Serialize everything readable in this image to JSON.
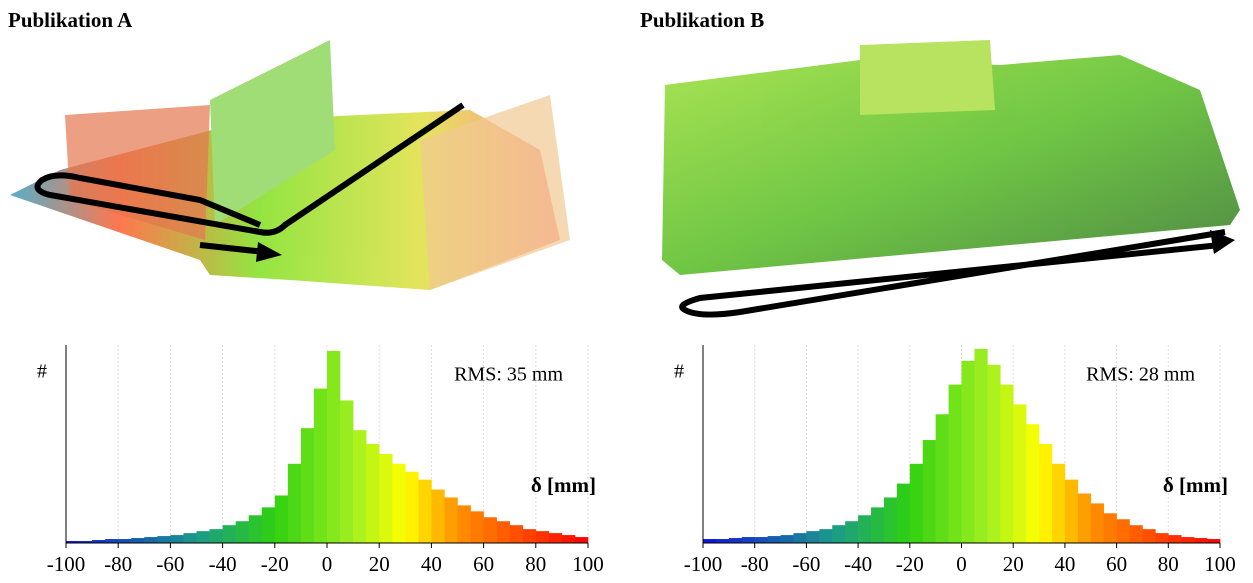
{
  "chart_data": [
    {
      "type": "histogram",
      "title": "Publikation A",
      "annotation": "RMS: 35 mm",
      "ylabel": "#",
      "xlabel": "δ [mm]",
      "bins": [
        -100,
        -95,
        -90,
        -85,
        -80,
        -75,
        -70,
        -65,
        -60,
        -55,
        -50,
        -45,
        -40,
        -35,
        -30,
        -25,
        -20,
        -15,
        -10,
        -5,
        0,
        5,
        10,
        15,
        20,
        25,
        30,
        35,
        40,
        45,
        50,
        55,
        60,
        65,
        70,
        75,
        80,
        85,
        90,
        95,
        100
      ],
      "counts": [
        1,
        1,
        1.5,
        2,
        2,
        2.5,
        3,
        3.5,
        4,
        5,
        6,
        7,
        9,
        11,
        14,
        18,
        24,
        40,
        58,
        78,
        97,
        72,
        57,
        50,
        45,
        40,
        36,
        32,
        27,
        23,
        19,
        16,
        13,
        11,
        9,
        7,
        6,
        5,
        4,
        3
      ],
      "xlim": [
        -100,
        100
      ],
      "xticks": [
        -100,
        -80,
        -60,
        -40,
        -20,
        0,
        20,
        40,
        60,
        80,
        100
      ],
      "ylim": [
        0,
        100
      ],
      "grid": true,
      "color_stops": [
        {
          "value": -100,
          "color": "#1010e0"
        },
        {
          "value": -50,
          "color": "#1a9a8a"
        },
        {
          "value": -20,
          "color": "#30d010"
        },
        {
          "value": 10,
          "color": "#a0f020"
        },
        {
          "value": 30,
          "color": "#ffff00"
        },
        {
          "value": 50,
          "color": "#ff9000"
        },
        {
          "value": 100,
          "color": "#ff0000"
        }
      ]
    },
    {
      "type": "histogram",
      "title": "Publikation B",
      "annotation": "RMS: 28 mm",
      "ylabel": "#",
      "xlabel": "δ [mm]",
      "bins": [
        -100,
        -95,
        -90,
        -85,
        -80,
        -75,
        -70,
        -65,
        -60,
        -55,
        -50,
        -45,
        -40,
        -35,
        -30,
        -25,
        -20,
        -15,
        -10,
        -5,
        0,
        5,
        10,
        15,
        20,
        25,
        30,
        35,
        40,
        45,
        50,
        55,
        60,
        65,
        70,
        75,
        80,
        85,
        90,
        95,
        100
      ],
      "counts": [
        2,
        2,
        2.5,
        3,
        3,
        3.5,
        4,
        5,
        6,
        7,
        9,
        11,
        14,
        18,
        23,
        30,
        40,
        52,
        65,
        80,
        92,
        98,
        90,
        80,
        70,
        60,
        50,
        40,
        32,
        25,
        20,
        15,
        12,
        9,
        7,
        5,
        4,
        3,
        2.5,
        2
      ],
      "xlim": [
        -100,
        100
      ],
      "xticks": [
        -100,
        -80,
        -60,
        -40,
        -20,
        0,
        20,
        40,
        60,
        80,
        100
      ],
      "ylim": [
        0,
        100
      ],
      "grid": true,
      "color_stops": [
        {
          "value": -100,
          "color": "#1010e0"
        },
        {
          "value": -50,
          "color": "#1a9a8a"
        },
        {
          "value": -20,
          "color": "#30d010"
        },
        {
          "value": 10,
          "color": "#a0f020"
        },
        {
          "value": 30,
          "color": "#ffff00"
        },
        {
          "value": 50,
          "color": "#ff9000"
        },
        {
          "value": 100,
          "color": "#ff0000"
        }
      ]
    }
  ]
}
